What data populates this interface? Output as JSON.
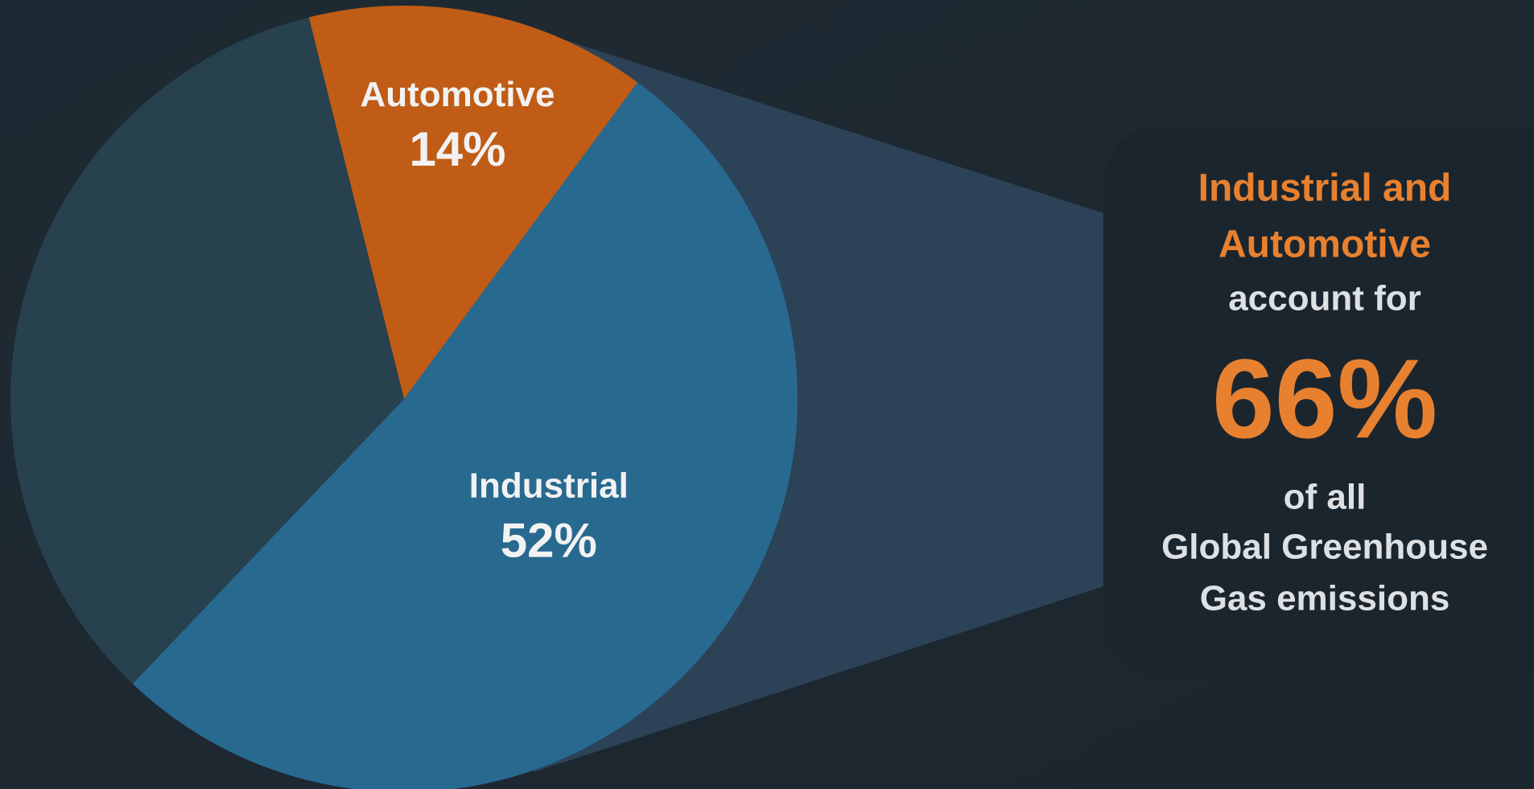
{
  "chart_data": {
    "type": "pie",
    "categories": [
      "Automotive",
      "Industrial",
      null
    ],
    "values": [
      14,
      52,
      34
    ],
    "value_labels": [
      "14%",
      "52%",
      null
    ],
    "colors": [
      "#c05c15",
      "#286990",
      "#27414f"
    ],
    "callout": {
      "heading": [
        "Industrial and",
        "Automotive"
      ],
      "intro": "account for",
      "total": "66%",
      "tail": [
        "of all",
        "Global Greenhouse",
        "Gas emissions"
      ]
    }
  }
}
